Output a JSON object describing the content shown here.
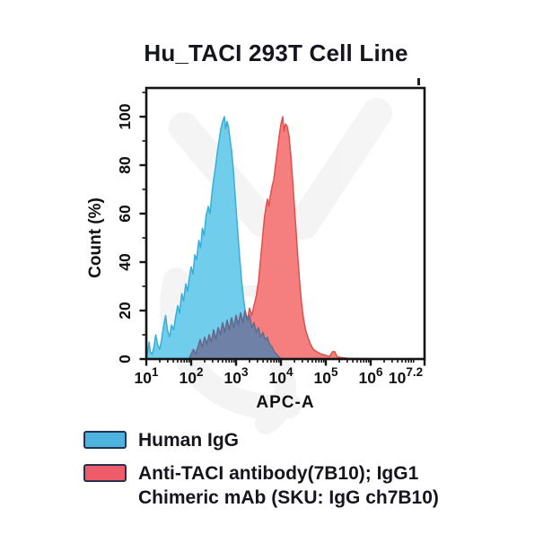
{
  "title": "Hu_TACI 293T Cell Line",
  "chart_data": {
    "type": "area",
    "subtype": "flow-cytometry-histogram",
    "title": "Hu_TACI 293T Cell Line",
    "xlabel": "APC-A",
    "ylabel": "Count (%)",
    "x_scale": "log10",
    "x_range_decades": [
      1,
      7.2
    ],
    "x_tick_base": "10",
    "x_tick_exponents": [
      "1",
      "2",
      "3",
      "4",
      "5",
      "6",
      "7.2"
    ],
    "x_tick_decades": [
      1,
      2,
      3,
      4,
      5,
      6,
      7.2
    ],
    "ylim": [
      0,
      100
    ],
    "y_ticks": [
      0,
      20,
      40,
      60,
      80,
      100
    ],
    "grid": false,
    "legend_position": "bottom-left",
    "overlap_fill": "#6F81A6",
    "overlap_stroke": "#5B6C92",
    "series": [
      {
        "name": "Human IgG",
        "fill": "#70CDEB",
        "stroke": "#38AED8",
        "points": [
          [
            1.0,
            0
          ],
          [
            1.03,
            3
          ],
          [
            1.06,
            7
          ],
          [
            1.09,
            3
          ],
          [
            1.13,
            2
          ],
          [
            1.17,
            5
          ],
          [
            1.21,
            10
          ],
          [
            1.25,
            6
          ],
          [
            1.3,
            4
          ],
          [
            1.34,
            8
          ],
          [
            1.38,
            13
          ],
          [
            1.43,
            18
          ],
          [
            1.47,
            12
          ],
          [
            1.52,
            9
          ],
          [
            1.56,
            14
          ],
          [
            1.61,
            12
          ],
          [
            1.65,
            17
          ],
          [
            1.7,
            22
          ],
          [
            1.74,
            19
          ],
          [
            1.79,
            27
          ],
          [
            1.83,
            24
          ],
          [
            1.88,
            31
          ],
          [
            1.92,
            28
          ],
          [
            1.96,
            34
          ],
          [
            2.0,
            38
          ],
          [
            2.04,
            35
          ],
          [
            2.08,
            43
          ],
          [
            2.12,
            41
          ],
          [
            2.17,
            49
          ],
          [
            2.21,
            46
          ],
          [
            2.25,
            54
          ],
          [
            2.29,
            51
          ],
          [
            2.33,
            59
          ],
          [
            2.38,
            63
          ],
          [
            2.42,
            60
          ],
          [
            2.46,
            68
          ],
          [
            2.5,
            74
          ],
          [
            2.54,
            79
          ],
          [
            2.58,
            85
          ],
          [
            2.62,
            90
          ],
          [
            2.66,
            95
          ],
          [
            2.7,
            98
          ],
          [
            2.74,
            100
          ],
          [
            2.77,
            95
          ],
          [
            2.8,
            98
          ],
          [
            2.83,
            96
          ],
          [
            2.87,
            90
          ],
          [
            2.9,
            86
          ],
          [
            2.94,
            78
          ],
          [
            2.97,
            70
          ],
          [
            3.0,
            62
          ],
          [
            3.04,
            52
          ],
          [
            3.08,
            42
          ],
          [
            3.12,
            33
          ],
          [
            3.16,
            26
          ],
          [
            3.2,
            20
          ],
          [
            3.25,
            16
          ],
          [
            3.3,
            18
          ],
          [
            3.35,
            13
          ],
          [
            3.4,
            15
          ],
          [
            3.45,
            11
          ],
          [
            3.5,
            13
          ],
          [
            3.55,
            9
          ],
          [
            3.6,
            11
          ],
          [
            3.65,
            8
          ],
          [
            3.7,
            9
          ],
          [
            3.75,
            6
          ],
          [
            3.8,
            5
          ],
          [
            3.85,
            3
          ],
          [
            3.9,
            2
          ],
          [
            3.95,
            1
          ],
          [
            4.0,
            0
          ]
        ]
      },
      {
        "name": "Anti-TACI antibody(7B10); IgG1 Chimeric mAb (SKU: IgG ch7B10)",
        "fill": "#F47F7E",
        "stroke": "#E24F4B",
        "points": [
          [
            1.95,
            0
          ],
          [
            2.0,
            2
          ],
          [
            2.05,
            4
          ],
          [
            2.1,
            2
          ],
          [
            2.15,
            5
          ],
          [
            2.2,
            8
          ],
          [
            2.25,
            5
          ],
          [
            2.3,
            9
          ],
          [
            2.35,
            6
          ],
          [
            2.4,
            10
          ],
          [
            2.45,
            7
          ],
          [
            2.5,
            12
          ],
          [
            2.55,
            8
          ],
          [
            2.6,
            13
          ],
          [
            2.65,
            10
          ],
          [
            2.7,
            15
          ],
          [
            2.75,
            11
          ],
          [
            2.8,
            16
          ],
          [
            2.85,
            12
          ],
          [
            2.9,
            17
          ],
          [
            2.95,
            13
          ],
          [
            3.0,
            18
          ],
          [
            3.05,
            14
          ],
          [
            3.1,
            19
          ],
          [
            3.15,
            15
          ],
          [
            3.2,
            20
          ],
          [
            3.25,
            16
          ],
          [
            3.3,
            21
          ],
          [
            3.35,
            18
          ],
          [
            3.4,
            22
          ],
          [
            3.45,
            26
          ],
          [
            3.5,
            32
          ],
          [
            3.55,
            42
          ],
          [
            3.6,
            52
          ],
          [
            3.63,
            58
          ],
          [
            3.67,
            63
          ],
          [
            3.7,
            66
          ],
          [
            3.73,
            63
          ],
          [
            3.77,
            68
          ],
          [
            3.8,
            71
          ],
          [
            3.84,
            74
          ],
          [
            3.88,
            80
          ],
          [
            3.92,
            86
          ],
          [
            3.96,
            92
          ],
          [
            4.0,
            97
          ],
          [
            4.04,
            100
          ],
          [
            4.07,
            94
          ],
          [
            4.1,
            97
          ],
          [
            4.14,
            96
          ],
          [
            4.18,
            92
          ],
          [
            4.22,
            84
          ],
          [
            4.26,
            74
          ],
          [
            4.3,
            63
          ],
          [
            4.34,
            52
          ],
          [
            4.38,
            41
          ],
          [
            4.42,
            31
          ],
          [
            4.46,
            23
          ],
          [
            4.5,
            17
          ],
          [
            4.55,
            12
          ],
          [
            4.6,
            9
          ],
          [
            4.66,
            6
          ],
          [
            4.72,
            4
          ],
          [
            4.8,
            3
          ],
          [
            4.9,
            2
          ],
          [
            5.0,
            1.5
          ],
          [
            5.08,
            1
          ],
          [
            5.15,
            3
          ],
          [
            5.2,
            3
          ],
          [
            5.25,
            1
          ],
          [
            5.35,
            0.6
          ],
          [
            5.5,
            0.3
          ],
          [
            5.8,
            0.2
          ],
          [
            6.2,
            0.1
          ],
          [
            7.2,
            0
          ]
        ]
      }
    ]
  },
  "legend": {
    "items": [
      {
        "label_lines": [
          "Human IgG"
        ],
        "swatch_fill": "#4FB3E0",
        "swatch_border": "#243150"
      },
      {
        "label_lines": [
          "Anti-TACI antibody(7B10); IgG1",
          "Chimeric mAb (SKU: IgG ch7B10)"
        ],
        "swatch_fill": "#EE5C6C",
        "swatch_border": "#243150"
      }
    ]
  }
}
